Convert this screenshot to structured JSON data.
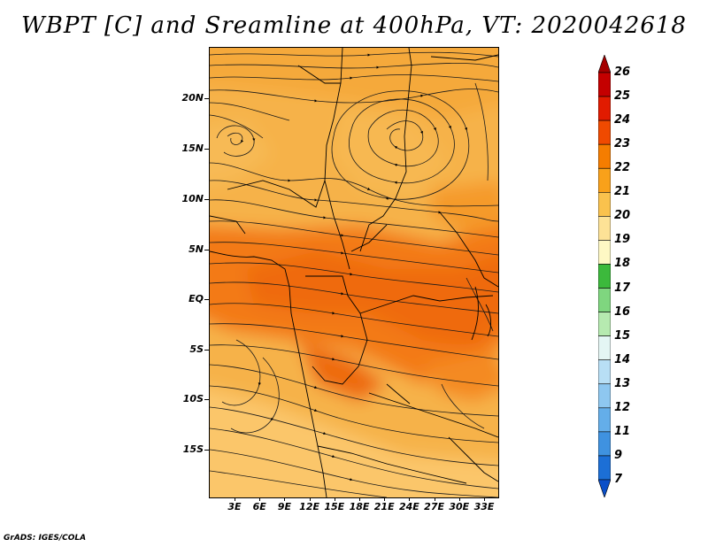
{
  "title": "WBPT [C] and Sreamline at 400hPa, VT: 2020042618",
  "credit": "GrADS: IGES/COLA",
  "map": {
    "lat_labels": [
      "20N",
      "15N",
      "10N",
      "5N",
      "EQ",
      "5S",
      "10S",
      "15S"
    ],
    "lon_labels": [
      "3E",
      "6E",
      "9E",
      "12E",
      "15E",
      "18E",
      "21E",
      "24E",
      "27E",
      "30E",
      "33E"
    ]
  },
  "colorbar": {
    "labels": [
      "26",
      "25",
      "24",
      "23",
      "22",
      "21",
      "20",
      "19",
      "18",
      "17",
      "16",
      "15",
      "14",
      "13",
      "12",
      "11",
      "9",
      "7"
    ],
    "colors": [
      "#a50000",
      "#c40000",
      "#e11b00",
      "#f04a00",
      "#f57d00",
      "#f9a11a",
      "#fac24d",
      "#fde296",
      "#fef8c4",
      "#3cb93c",
      "#7fd67f",
      "#b6eab0",
      "#e4f6f4",
      "#b8dff5",
      "#8ec7f0",
      "#64aee9",
      "#3f92e0",
      "#1c6fd6",
      "#0b4fc8"
    ]
  }
}
